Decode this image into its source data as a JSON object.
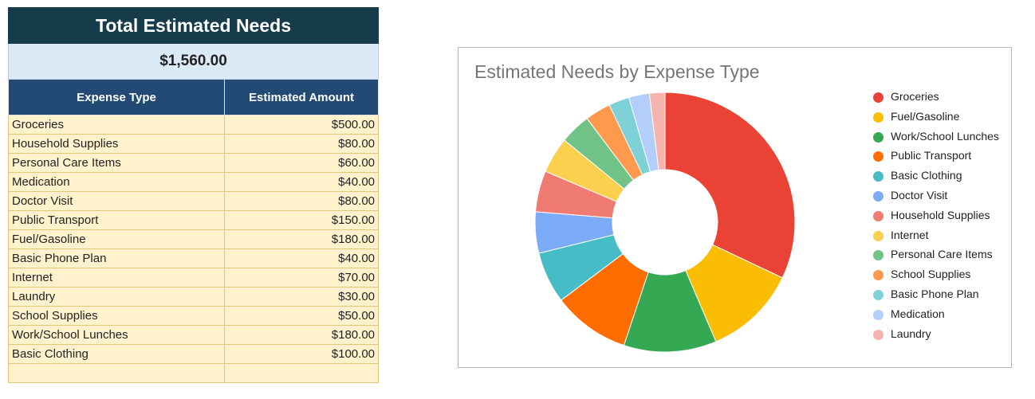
{
  "table": {
    "title": "Total Estimated Needs",
    "total": "$1,560.00",
    "headers": [
      "Expense Type",
      "Estimated Amount"
    ],
    "rows": [
      {
        "type": "Groceries",
        "amount": "$500.00"
      },
      {
        "type": "Household Supplies",
        "amount": "$80.00"
      },
      {
        "type": "Personal Care Items",
        "amount": "$60.00"
      },
      {
        "type": "Medication",
        "amount": "$40.00"
      },
      {
        "type": "Doctor Visit",
        "amount": "$80.00"
      },
      {
        "type": "Public Transport",
        "amount": "$150.00"
      },
      {
        "type": "Fuel/Gasoline",
        "amount": "$180.00"
      },
      {
        "type": "Basic Phone Plan",
        "amount": "$40.00"
      },
      {
        "type": "Internet",
        "amount": "$70.00"
      },
      {
        "type": "Laundry",
        "amount": "$30.00"
      },
      {
        "type": "School Supplies",
        "amount": "$50.00"
      },
      {
        "type": "Work/School Lunches",
        "amount": "$180.00"
      },
      {
        "type": "Basic Clothing",
        "amount": "$100.00"
      },
      {
        "type": "",
        "amount": ""
      }
    ]
  },
  "chart_data": {
    "type": "pie",
    "style": "donut",
    "title": "Estimated Needs by Expense Type",
    "legend_position": "right",
    "categories": [
      "Groceries",
      "Fuel/Gasoline",
      "Work/School Lunches",
      "Public Transport",
      "Basic Clothing",
      "Doctor Visit",
      "Household Supplies",
      "Internet",
      "Personal Care Items",
      "School Supplies",
      "Basic Phone Plan",
      "Medication",
      "Laundry"
    ],
    "values": [
      500,
      180,
      180,
      150,
      100,
      80,
      80,
      70,
      60,
      50,
      40,
      40,
      30
    ],
    "colors": [
      "#ea4335",
      "#fbbc04",
      "#34a853",
      "#ff6d01",
      "#46bdc6",
      "#7baaf7",
      "#f07b72",
      "#fcd04f",
      "#71c287",
      "#ff994d",
      "#7ed1d7",
      "#b3cefb",
      "#f7b4ae"
    ]
  }
}
